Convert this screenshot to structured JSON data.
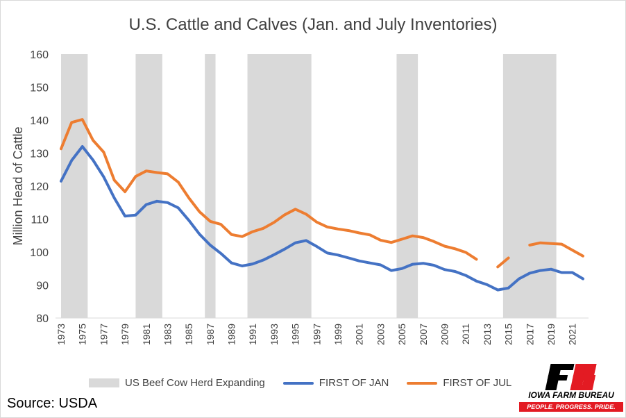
{
  "chart_data": {
    "type": "line",
    "title": "U.S. Cattle and Calves (Jan. and July Inventories)",
    "ylabel": "Million Head of Cattle",
    "xlabel": "",
    "ylim": [
      80,
      160
    ],
    "y_ticks": [
      80,
      90,
      100,
      110,
      120,
      130,
      140,
      150,
      160
    ],
    "x_range": [
      1973,
      2022
    ],
    "x_tick_labels": [
      "1973",
      "1975",
      "1977",
      "1979",
      "1981",
      "1983",
      "1985",
      "1987",
      "1989",
      "1991",
      "1993",
      "1995",
      "1997",
      "1999",
      "2001",
      "2003",
      "2005",
      "2007",
      "2009",
      "2011",
      "2013",
      "2015",
      "2017",
      "2019",
      "2021"
    ],
    "grid": false,
    "legend_position": "bottom",
    "shaded_periods": {
      "name": "US Beef Cow Herd Expanding",
      "color": "#d9d9d9",
      "ranges": [
        [
          1973,
          1975.5
        ],
        [
          1980,
          1982.5
        ],
        [
          1986.5,
          1987.5
        ],
        [
          1990.5,
          1996.5
        ],
        [
          2004.5,
          2006.5
        ],
        [
          2014.5,
          2019.5
        ]
      ]
    },
    "series": [
      {
        "name": "FIRST OF JAN",
        "color": "#4472c4",
        "points": [
          [
            1973,
            121.5
          ],
          [
            1974,
            127.8
          ],
          [
            1975,
            132.0
          ],
          [
            1976,
            127.9
          ],
          [
            1977,
            122.8
          ],
          [
            1978,
            116.4
          ],
          [
            1979,
            110.9
          ],
          [
            1980,
            111.2
          ],
          [
            1981,
            114.4
          ],
          [
            1982,
            115.4
          ],
          [
            1983,
            115.0
          ],
          [
            1984,
            113.4
          ],
          [
            1985,
            109.6
          ],
          [
            1986,
            105.4
          ],
          [
            1987,
            102.1
          ],
          [
            1988,
            99.6
          ],
          [
            1989,
            96.7
          ],
          [
            1990,
            95.8
          ],
          [
            1991,
            96.4
          ],
          [
            1992,
            97.6
          ],
          [
            1993,
            99.2
          ],
          [
            1994,
            100.9
          ],
          [
            1995,
            102.8
          ],
          [
            1996,
            103.5
          ],
          [
            1997,
            101.7
          ],
          [
            1998,
            99.7
          ],
          [
            1999,
            99.1
          ],
          [
            2000,
            98.2
          ],
          [
            2001,
            97.3
          ],
          [
            2002,
            96.7
          ],
          [
            2003,
            96.1
          ],
          [
            2004,
            94.4
          ],
          [
            2005,
            95.0
          ],
          [
            2006,
            96.3
          ],
          [
            2007,
            96.6
          ],
          [
            2008,
            96.0
          ],
          [
            2009,
            94.7
          ],
          [
            2010,
            94.1
          ],
          [
            2011,
            92.9
          ],
          [
            2012,
            91.2
          ],
          [
            2013,
            90.1
          ],
          [
            2014,
            88.5
          ],
          [
            2015,
            89.1
          ],
          [
            2016,
            91.9
          ],
          [
            2017,
            93.6
          ],
          [
            2018,
            94.4
          ],
          [
            2019,
            94.8
          ],
          [
            2020,
            93.8
          ],
          [
            2021,
            93.8
          ],
          [
            2022,
            91.9
          ]
        ]
      },
      {
        "name": "FIRST OF JUL",
        "color": "#ed7d31",
        "points": [
          [
            1973,
            131.3
          ],
          [
            1974,
            139.3
          ],
          [
            1975,
            140.2
          ],
          [
            1976,
            133.9
          ],
          [
            1977,
            130.3
          ],
          [
            1978,
            121.8
          ],
          [
            1979,
            118.3
          ],
          [
            1980,
            122.9
          ],
          [
            1981,
            124.6
          ],
          [
            1982,
            124.1
          ],
          [
            1983,
            123.7
          ],
          [
            1984,
            121.2
          ],
          [
            1985,
            116.4
          ],
          [
            1986,
            112.2
          ],
          [
            1987,
            109.3
          ],
          [
            1988,
            108.4
          ],
          [
            1989,
            105.3
          ],
          [
            1990,
            104.7
          ],
          [
            1991,
            106.2
          ],
          [
            1992,
            107.2
          ],
          [
            1993,
            109.0
          ],
          [
            1994,
            111.3
          ],
          [
            1995,
            113.0
          ],
          [
            1996,
            111.5
          ],
          [
            1997,
            109.1
          ],
          [
            1998,
            107.6
          ],
          [
            1999,
            107.0
          ],
          [
            2000,
            106.5
          ],
          [
            2001,
            105.8
          ],
          [
            2002,
            105.2
          ],
          [
            2003,
            103.6
          ],
          [
            2004,
            102.9
          ],
          [
            2005,
            103.9
          ],
          [
            2006,
            104.9
          ],
          [
            2007,
            104.4
          ],
          [
            2008,
            103.2
          ],
          [
            2009,
            101.8
          ],
          [
            2010,
            101.0
          ],
          [
            2011,
            99.9
          ],
          [
            2012,
            97.8
          ],
          [
            2013,
            null
          ],
          [
            2014,
            95.5
          ],
          [
            2015,
            98.2
          ],
          [
            2016,
            null
          ],
          [
            2017,
            102.1
          ],
          [
            2018,
            102.8
          ],
          [
            2019,
            102.6
          ],
          [
            2020,
            102.4
          ],
          [
            2021,
            100.6
          ],
          [
            2022,
            98.8
          ]
        ]
      }
    ]
  },
  "source_text": "Source: USDA",
  "logo": {
    "name": "IOWA FARM BUREAU",
    "tagline": "PEOPLE. PROGRESS. PRIDE.",
    "brand_color": "#e31b23"
  }
}
